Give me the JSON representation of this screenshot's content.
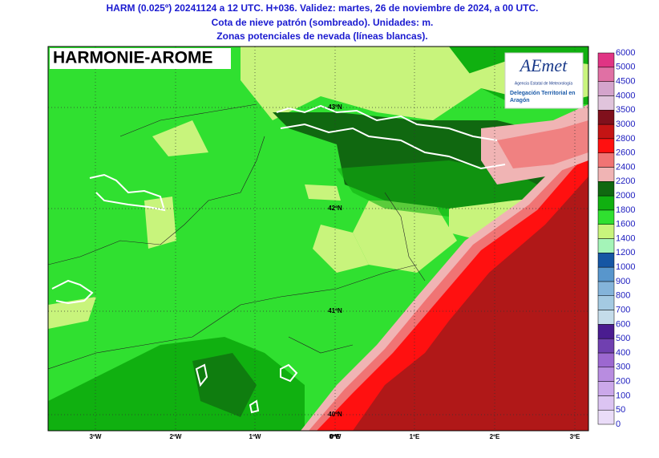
{
  "header": {
    "lines": [
      "HARM (0.025º) 20241124 a 12 UTC. H+036. Validez: martes, 26 de noviembre de 2024, a 00 UTC.",
      "Cota de nieve patrón (sombreado). Unidades: m.",
      "Zonas potenciales de nevada (líneas blancas)."
    ]
  },
  "map": {
    "model_label": "HARMONIE-AROME",
    "lat_labels": [
      "43ºN",
      "42ºN",
      "41ºN",
      "40ºN"
    ],
    "lon_labels": [
      "3ºW",
      "2ºW",
      "1ºW",
      "0ºW",
      "0ºE",
      "1ºE",
      "2ºE",
      "3ºE"
    ],
    "logo": {
      "name": "AEmet",
      "agency": "Agencia Estatal de Meteorología",
      "office": "Delegación Territorial en Aragón"
    }
  },
  "colorbar": {
    "levels": [
      0,
      50,
      100,
      200,
      300,
      400,
      500,
      600,
      700,
      800,
      900,
      1000,
      1200,
      1400,
      1600,
      1800,
      2000,
      2200,
      2400,
      2600,
      2800,
      3000,
      3500,
      4000,
      4500,
      5000,
      6000
    ],
    "colors": [
      "#eadcf8",
      "#dcc4f2",
      "#cba8ea",
      "#b88ce0",
      "#9c68d0",
      "#7040b0",
      "#4a1c90",
      "#c4dcea",
      "#a4cae2",
      "#84b4da",
      "#5896cc",
      "#1656a4",
      "#a4f4b8",
      "#c8f47c",
      "#30e030",
      "#10b010",
      "#106810",
      "#f0b4b4",
      "#f07474",
      "#ff1010",
      "#c41414",
      "#80101c",
      "#e0c4dc",
      "#d4a4cc",
      "#e070a4",
      "#e03484",
      "#a00044"
    ]
  }
}
